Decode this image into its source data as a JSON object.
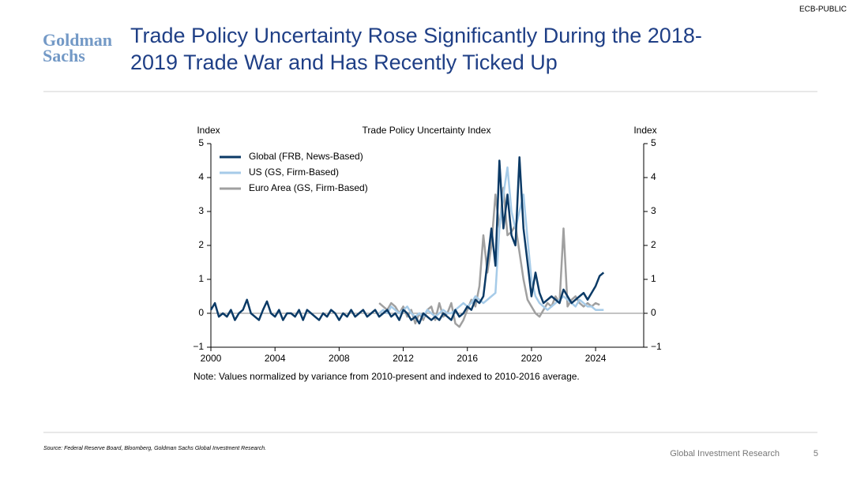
{
  "slide": {
    "badge": "ECB-PUBLIC",
    "logo": [
      "Goldman",
      "Sachs"
    ],
    "title": [
      "Trade Policy Uncertainty Rose Significantly During the 2018-",
      "2019 Trade War and Has Recently Ticked Up"
    ],
    "note": "Note: Values normalized by variance from 2010-present and indexed to 2010-2016 average.",
    "source": "Source: Federal Reserve Board, Bloomberg, Goldman Sachs Global Investment Research.",
    "footer": "Global Investment Research",
    "page": "5"
  },
  "chart_data": {
    "type": "line",
    "title": "Trade Policy Uncertainty Index",
    "y_label": "Index",
    "y2_label": "Index",
    "x": [
      2000,
      2000.25,
      2000.5,
      2000.75,
      2001,
      2001.25,
      2001.5,
      2001.75,
      2002,
      2002.25,
      2002.5,
      2002.75,
      2003,
      2003.25,
      2003.5,
      2003.75,
      2004,
      2004.25,
      2004.5,
      2004.75,
      2005,
      2005.25,
      2005.5,
      2005.75,
      2006,
      2006.25,
      2006.5,
      2006.75,
      2007,
      2007.25,
      2007.5,
      2007.75,
      2008,
      2008.25,
      2008.5,
      2008.75,
      2009,
      2009.25,
      2009.5,
      2009.75,
      2010,
      2010.25,
      2010.5,
      2010.75,
      2011,
      2011.25,
      2011.5,
      2011.75,
      2012,
      2012.25,
      2012.5,
      2012.75,
      2013,
      2013.25,
      2013.5,
      2013.75,
      2014,
      2014.25,
      2014.5,
      2014.75,
      2015,
      2015.25,
      2015.5,
      2015.75,
      2016,
      2016.25,
      2016.5,
      2016.75,
      2017,
      2017.25,
      2017.5,
      2017.75,
      2018,
      2018.25,
      2018.5,
      2018.75,
      2019,
      2019.25,
      2019.5,
      2019.75,
      2020,
      2020.25,
      2020.5,
      2020.75,
      2021,
      2021.25,
      2021.5,
      2021.75,
      2022,
      2022.25,
      2022.5,
      2022.75,
      2023,
      2023.25,
      2023.5,
      2023.75,
      2024,
      2024.25,
      2024.5
    ],
    "series": [
      {
        "name": "Global (FRB, News-Based)",
        "color": "#0b3a66",
        "values": [
          0.1,
          0.3,
          -0.1,
          0.0,
          -0.1,
          0.1,
          -0.2,
          0.0,
          0.1,
          0.4,
          0.0,
          -0.1,
          -0.2,
          0.1,
          0.35,
          0.0,
          -0.1,
          0.1,
          -0.2,
          0.0,
          0.0,
          -0.1,
          0.1,
          -0.2,
          0.1,
          0.0,
          -0.1,
          -0.2,
          0.0,
          -0.1,
          0.1,
          0.0,
          -0.2,
          0.0,
          -0.1,
          0.1,
          -0.1,
          0.0,
          0.1,
          -0.1,
          0.0,
          0.1,
          -0.1,
          0.0,
          0.1,
          -0.1,
          0.0,
          -0.2,
          0.1,
          0.0,
          -0.2,
          -0.1,
          -0.3,
          0.0,
          -0.1,
          -0.2,
          -0.1,
          -0.2,
          0.0,
          -0.1,
          -0.2,
          0.1,
          -0.1,
          0.0,
          0.2,
          0.1,
          0.4,
          0.3,
          0.5,
          1.5,
          2.5,
          1.4,
          4.5,
          2.5,
          3.5,
          2.3,
          2.0,
          4.6,
          2.5,
          1.5,
          0.5,
          1.2,
          0.6,
          0.3,
          0.4,
          0.5,
          0.4,
          0.3,
          0.7,
          0.5,
          0.3,
          0.4,
          0.5,
          0.6,
          0.4,
          0.6,
          0.8,
          1.1,
          1.2
        ]
      },
      {
        "name": "US (GS, Firm-Based)",
        "color": "#a6cbe8",
        "values": [
          null,
          null,
          null,
          null,
          null,
          null,
          null,
          null,
          null,
          null,
          null,
          null,
          null,
          null,
          null,
          null,
          null,
          null,
          null,
          null,
          null,
          null,
          null,
          null,
          null,
          null,
          null,
          null,
          null,
          null,
          null,
          null,
          null,
          null,
          null,
          null,
          null,
          null,
          null,
          null,
          null,
          null,
          0.0,
          0.1,
          0.0,
          0.2,
          0.1,
          0.0,
          0.1,
          0.2,
          0.0,
          -0.1,
          0.0,
          -0.1,
          0.1,
          0.0,
          -0.1,
          0.0,
          0.1,
          0.0,
          0.0,
          0.1,
          0.2,
          0.3,
          0.2,
          0.3,
          0.5,
          0.4,
          0.3,
          0.4,
          0.5,
          0.6,
          2.5,
          3.5,
          4.3,
          3.0,
          2.5,
          3.0,
          3.5,
          2.2,
          1.0,
          0.5,
          0.3,
          0.2,
          0.1,
          0.2,
          0.3,
          0.4,
          0.5,
          0.4,
          0.3,
          0.2,
          0.4,
          0.3,
          0.2,
          0.2,
          0.1,
          0.1,
          0.1
        ]
      },
      {
        "name": "Euro Area (GS, Firm-Based)",
        "color": "#a0a0a0",
        "values": [
          null,
          null,
          null,
          null,
          null,
          null,
          null,
          null,
          null,
          null,
          null,
          null,
          null,
          null,
          null,
          null,
          null,
          null,
          null,
          null,
          null,
          null,
          null,
          null,
          null,
          null,
          null,
          null,
          null,
          null,
          null,
          null,
          null,
          null,
          null,
          null,
          null,
          null,
          null,
          null,
          null,
          null,
          0.3,
          0.2,
          0.1,
          0.3,
          0.2,
          0.0,
          0.2,
          -0.1,
          0.1,
          -0.3,
          0.0,
          -0.2,
          0.1,
          0.2,
          -0.2,
          0.3,
          -0.1,
          0.0,
          0.3,
          -0.3,
          -0.4,
          -0.2,
          0.1,
          0.4,
          0.2,
          0.8,
          2.3,
          1.2,
          2.0,
          3.5,
          2.5,
          3.7,
          2.3,
          2.4,
          2.6,
          1.8,
          1.0,
          0.4,
          0.2,
          0.0,
          -0.1,
          0.1,
          0.3,
          0.2,
          0.5,
          0.3,
          2.5,
          0.2,
          0.4,
          0.5,
          0.3,
          0.2,
          0.3,
          0.2,
          0.3,
          0.25,
          null
        ]
      }
    ],
    "xlim": [
      2000,
      2027
    ],
    "xticks": [
      2000,
      2004,
      2008,
      2012,
      2016,
      2020,
      2024
    ],
    "ylim": [
      -1,
      5
    ],
    "yticks": [
      {
        "value": -1,
        "label": "−1"
      },
      0,
      1,
      2,
      3,
      4,
      5
    ],
    "y2lim": [
      -1,
      5
    ],
    "y2ticks": [
      {
        "value": -1,
        "label": "−1"
      },
      0,
      1,
      2,
      3,
      4,
      5
    ],
    "reference_line": 0,
    "legend": "upper left"
  }
}
